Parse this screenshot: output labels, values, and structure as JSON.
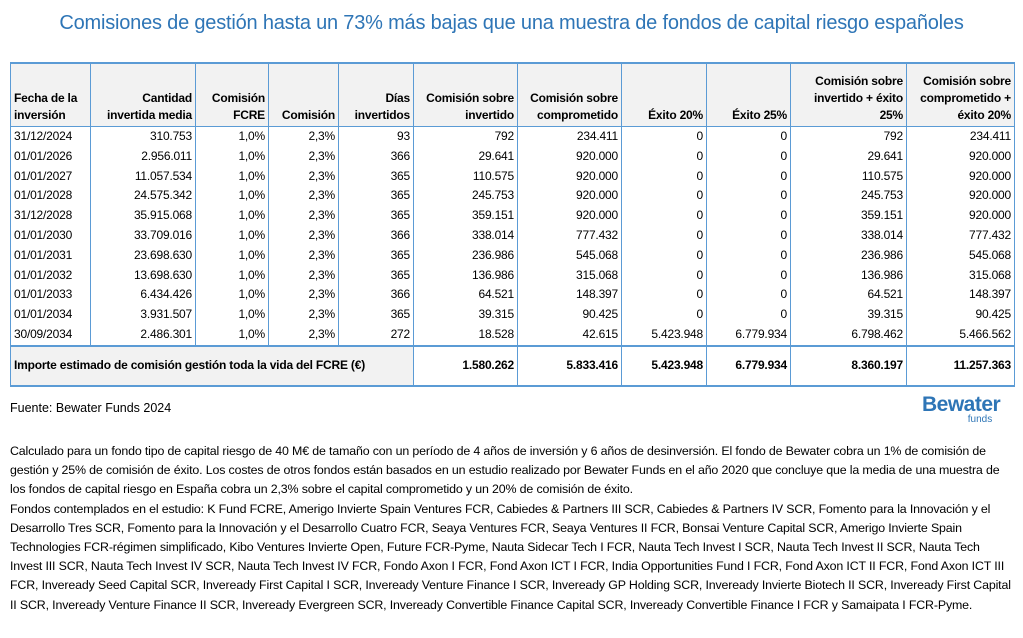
{
  "title": "Comisiones de gestión hasta un 73% más bajas que una muestra de fondos de capital riesgo españoles",
  "table": {
    "headers": [
      "Fecha de la inversión",
      "Cantidad invertida media",
      "Comisión FCRE",
      "Comisión",
      "Días invertidos",
      "Comisión sobre invertido",
      "Comisión sobre comprometido",
      "Éxito 20%",
      "Éxito 25%",
      "Comisión sobre invertido + éxito 25%",
      "Comisión sobre comprometido + éxito 20%"
    ],
    "rows": [
      [
        "31/12/2024",
        "310.753",
        "1,0%",
        "2,3%",
        "93",
        "792",
        "234.411",
        "0",
        "0",
        "792",
        "234.411"
      ],
      [
        "01/01/2026",
        "2.956.011",
        "1,0%",
        "2,3%",
        "366",
        "29.641",
        "920.000",
        "0",
        "0",
        "29.641",
        "920.000"
      ],
      [
        "01/01/2027",
        "11.057.534",
        "1,0%",
        "2,3%",
        "365",
        "110.575",
        "920.000",
        "0",
        "0",
        "110.575",
        "920.000"
      ],
      [
        "01/01/2028",
        "24.575.342",
        "1,0%",
        "2,3%",
        "365",
        "245.753",
        "920.000",
        "0",
        "0",
        "245.753",
        "920.000"
      ],
      [
        "31/12/2028",
        "35.915.068",
        "1,0%",
        "2,3%",
        "365",
        "359.151",
        "920.000",
        "0",
        "0",
        "359.151",
        "920.000"
      ],
      [
        "01/01/2030",
        "33.709.016",
        "1,0%",
        "2,3%",
        "366",
        "338.014",
        "777.432",
        "0",
        "0",
        "338.014",
        "777.432"
      ],
      [
        "01/01/2031",
        "23.698.630",
        "1,0%",
        "2,3%",
        "365",
        "236.986",
        "545.068",
        "0",
        "0",
        "236.986",
        "545.068"
      ],
      [
        "01/01/2032",
        "13.698.630",
        "1,0%",
        "2,3%",
        "365",
        "136.986",
        "315.068",
        "0",
        "0",
        "136.986",
        "315.068"
      ],
      [
        "01/01/2033",
        "6.434.426",
        "1,0%",
        "2,3%",
        "366",
        "64.521",
        "148.397",
        "0",
        "0",
        "64.521",
        "148.397"
      ],
      [
        "01/01/2034",
        "3.931.507",
        "1,0%",
        "2,3%",
        "365",
        "39.315",
        "90.425",
        "0",
        "0",
        "39.315",
        "90.425"
      ],
      [
        "30/09/2034",
        "2.486.301",
        "1,0%",
        "2,3%",
        "272",
        "18.528",
        "42.615",
        "5.423.948",
        "6.779.934",
        "6.798.462",
        "5.466.562"
      ]
    ],
    "total": {
      "label": "Importe estimado de comisión gestión toda la vida del FCRE (€)",
      "values": [
        "1.580.262",
        "5.833.416",
        "5.423.948",
        "6.779.934",
        "8.360.197",
        "11.257.363"
      ]
    }
  },
  "source": "Fuente: Bewater Funds 2024",
  "logo": {
    "name": "Bewater",
    "sub": "funds",
    "color": "#2e75b6"
  },
  "notes": [
    "Calculado para un fondo tipo de capital riesgo de 40 M€ de tamaño con un período de 4 años de inversión y 6 años de desinversión. El fondo de Bewater cobra un 1% de comisión de gestión y 25% de comisión de éxito. Los costes de otros fondos están basados en un estudio realizado por Bewater Funds en el año 2020 que concluye que la media de una muestra de los fondos de capital riesgo en España cobra un 2,3% sobre el capital comprometido y un 20% de comisión de éxito.",
    "Fondos contemplados en el estudio: K Fund FCRE, Amerigo Invierte Spain Ventures FCR, Cabiedes & Partners III SCR, Cabiedes & Partners IV SCR, Fomento para la Innovación y el Desarrollo Tres SCR, Fomento para la Innovación y el Desarrollo Cuatro FCR, Seaya Ventures FCR, Seaya Ventures II FCR, Bonsai Venture Capital SCR, Amerigo Invierte Spain Technologies FCR-régimen simplificado, Kibo Ventures Invierte Open, Future FCR-Pyme, Nauta Sidecar Tech I FCR, Nauta Tech Invest I SCR, Nauta Tech Invest II SCR, Nauta Tech Invest III SCR, Nauta Tech Invest IV SCR, Nauta Tech Invest IV FCR, Fondo Axon I FCR, Fond Axon ICT I FCR, India Opportunities Fund I FCR, Fond Axon ICT II FCR, Fond Axon ICT III FCR, Inveready Seed Capital SCR, Inveready First Capital I SCR, Inveready Venture Finance I SCR, Inveready GP Holding SCR, Inveready Invierte Biotech II SCR, Inveready First Capital II SCR, Inveready Venture Finance II SCR, Inveready Evergreen SCR, Inveready Convertible Finance Capital SCR, Inveready Convertible Finance I FCR y Samaipata I FCR-Pyme."
  ]
}
